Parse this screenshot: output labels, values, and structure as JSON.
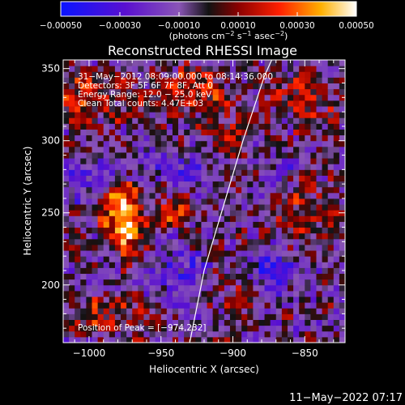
{
  "chart_data": {
    "type": "heatmap",
    "title": "Reconstructed RHESSI Image",
    "xlabel": "Heliocentric X (arcsec)",
    "ylabel": "Heliocentric Y (arcsec)",
    "xlim": [
      -1018,
      -822
    ],
    "ylim": [
      160,
      356
    ],
    "xticks": [
      -1000,
      -950,
      -900,
      -850
    ],
    "yticks": [
      200,
      250,
      300,
      350
    ],
    "colorbar": {
      "range": [
        -0.0005,
        0.0005
      ],
      "ticks": [
        -0.0005,
        -0.0003,
        -0.0001,
        0.0001,
        0.0003,
        0.0005
      ],
      "tick_labels": [
        "−0.00050",
        "−0.00030",
        "−0.00010",
        "0.00010",
        "0.00030",
        "0.00050"
      ],
      "unit_label": "(photons cm",
      "unit_sup1": "−2",
      "unit_mid": " s",
      "unit_sup2": "−1",
      "unit_mid2": " asec",
      "unit_sup3": "−2",
      "unit_close": ")"
    },
    "annotations": {
      "time_range": "31−May−2012 08:09:00.000 to 08:14:36.000",
      "detectors": "Detectors: 3F 5F 6F 7F 8F, Att 0",
      "energy_range": "Energy Range: 12.0 − 25.0 keV",
      "clean_counts": "Clean    Total counts: 4.47E+03",
      "peak": "Position of Peak = [−974,232]"
    },
    "peak": {
      "x": -974,
      "y": 232
    },
    "limb_arc": [
      [
        -930,
        160
      ],
      [
        -920,
        210
      ],
      [
        -905,
        260
      ],
      [
        -893,
        300
      ],
      [
        -878,
        345
      ],
      [
        -873,
        356
      ]
    ],
    "hot_regions": [
      {
        "x": -975,
        "y": 238,
        "amp": 0.0005,
        "sx": 8,
        "sy": 12
      },
      {
        "x": -980,
        "y": 258,
        "amp": 0.00035,
        "sx": 10,
        "sy": 9
      },
      {
        "x": -940,
        "y": 250,
        "amp": 0.00028,
        "sx": 10,
        "sy": 8
      },
      {
        "x": -1005,
        "y": 330,
        "amp": 0.00025,
        "sx": 18,
        "sy": 12
      },
      {
        "x": -930,
        "y": 335,
        "amp": 0.00025,
        "sx": 20,
        "sy": 10
      },
      {
        "x": -850,
        "y": 330,
        "amp": 0.0002,
        "sx": 15,
        "sy": 12
      },
      {
        "x": -905,
        "y": 300,
        "amp": 0.0002,
        "sx": 12,
        "sy": 10
      },
      {
        "x": -985,
        "y": 180,
        "amp": 0.00018,
        "sx": 20,
        "sy": 10
      },
      {
        "x": -850,
        "y": 250,
        "amp": 0.00018,
        "sx": 12,
        "sy": 14
      },
      {
        "x": -880,
        "y": 195,
        "amp": 0.00015,
        "sx": 14,
        "sy": 10
      }
    ],
    "cold_regions": [
      {
        "x": -940,
        "y": 210,
        "amp": 0.00022,
        "sx": 16,
        "sy": 14
      },
      {
        "x": -872,
        "y": 205,
        "amp": 0.00028,
        "sx": 12,
        "sy": 15
      },
      {
        "x": -930,
        "y": 285,
        "amp": 0.00018,
        "sx": 18,
        "sy": 10
      },
      {
        "x": -1005,
        "y": 275,
        "amp": 0.0002,
        "sx": 14,
        "sy": 12
      },
      {
        "x": -870,
        "y": 280,
        "amp": 0.00015,
        "sx": 12,
        "sy": 12
      }
    ]
  },
  "footer": {
    "timestamp": "11−May−2022 07:17"
  }
}
